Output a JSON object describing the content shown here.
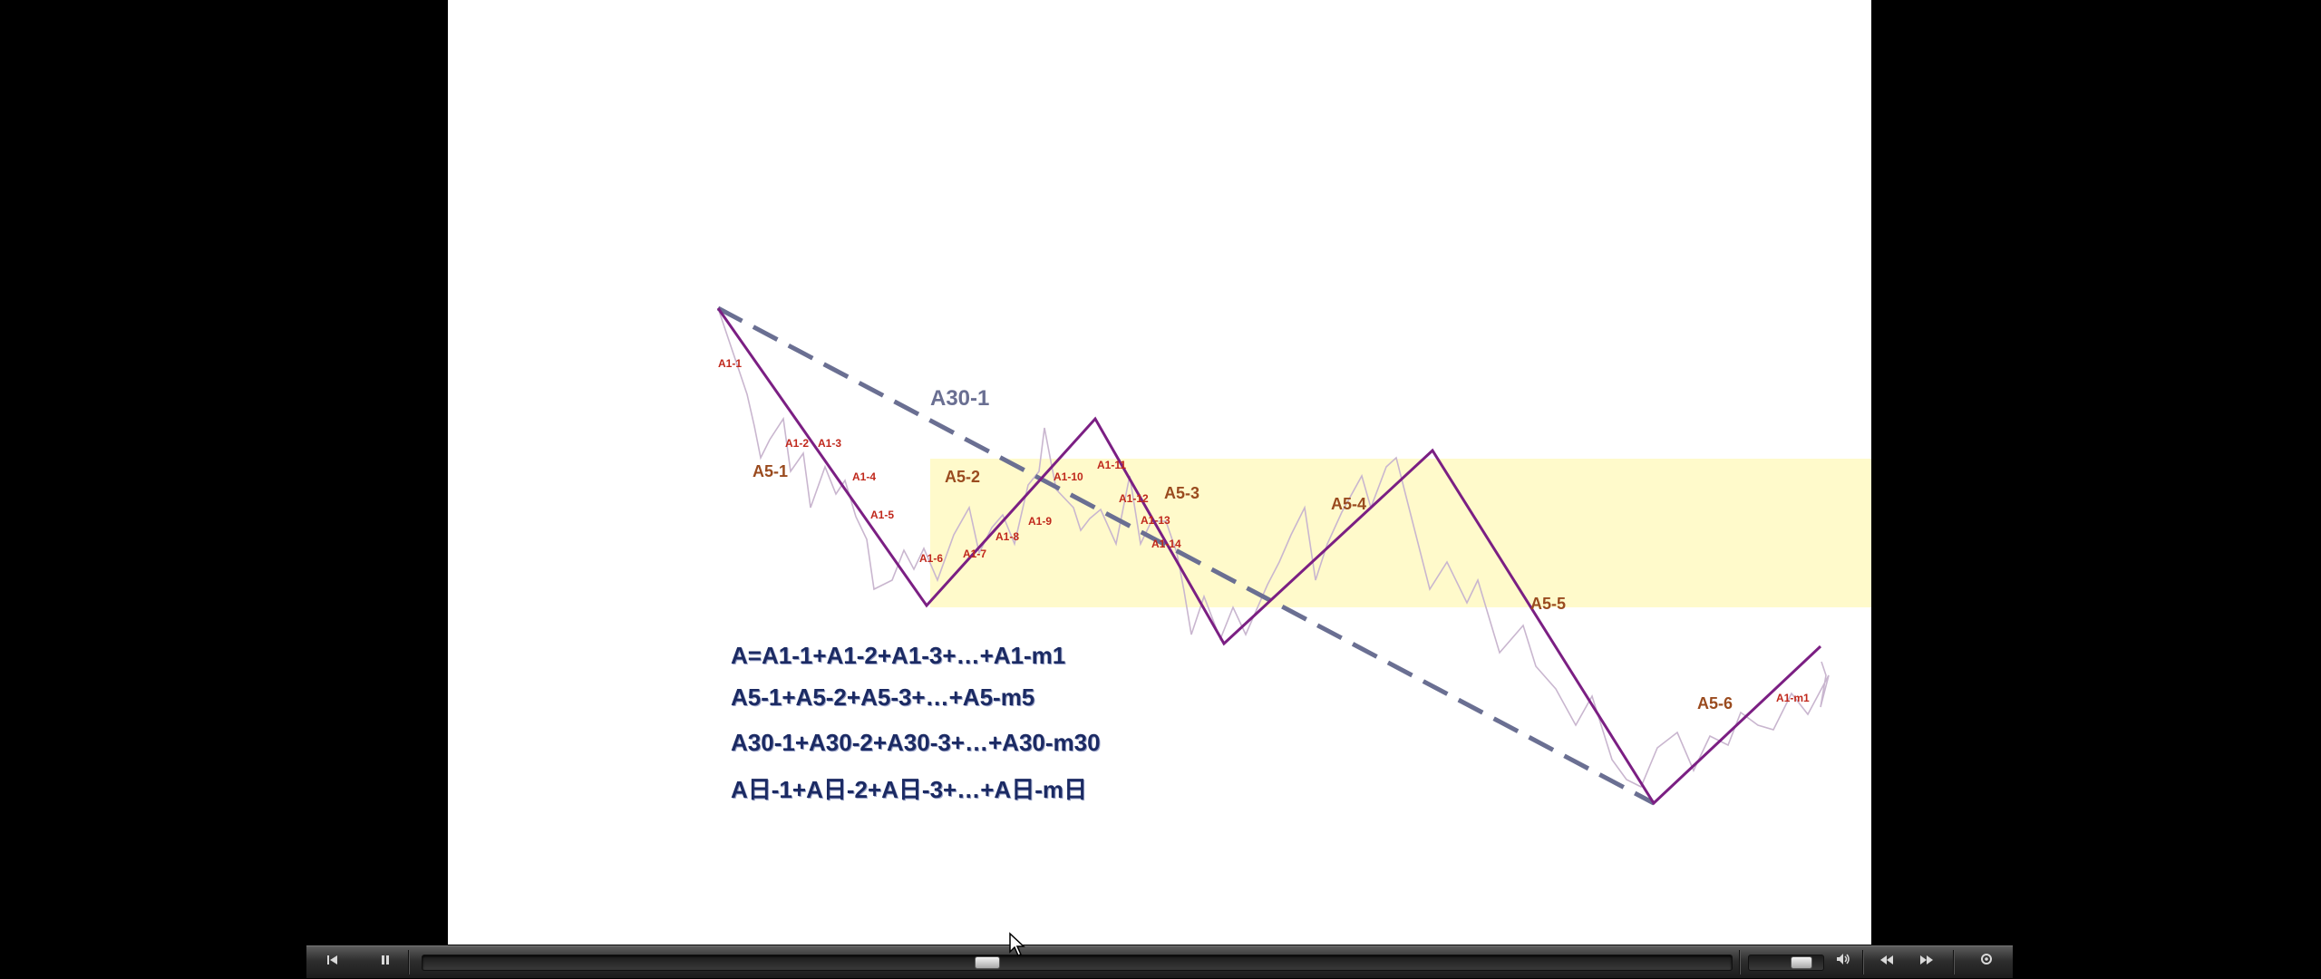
{
  "diagram": {
    "trendline_label": "A30-1",
    "wave_labels_a5": [
      "A5-1",
      "A5-2",
      "A5-3",
      "A5-4",
      "A5-5",
      "A5-6"
    ],
    "wave_labels_a1": [
      "A1-1",
      "A1-2",
      "A1-3",
      "A1-4",
      "A1-5",
      "A1-6",
      "A1-7",
      "A1-8",
      "A1-9",
      "A1-10",
      "A1-11",
      "A1-12",
      "A1-13",
      "A1-14",
      "A1-m1"
    ],
    "formulas": [
      "A=A1-1+A1-2+A1-3+…+A1-m1",
      "A5-1+A5-2+A5-3+…+A5-m5",
      "A30-1+A30-2+A30-3+…+A30-m30",
      "A日-1+A日-2+A日-3+…+A日-m日"
    ],
    "colors": {
      "a5_line": "#7b1f83",
      "a1_line": "#c9b6cf",
      "trendline": "#6a6f92",
      "a5_label": "#9a4b1f",
      "a1_label": "#c0281c",
      "trend_label": "#6a6f92",
      "zone_fill": "#fffac8"
    }
  },
  "player": {
    "buttons": [
      "skip-back-icon",
      "pause-icon",
      "volume-icon",
      "rewind-icon",
      "fast-forward-icon",
      "settings-icon"
    ],
    "seek_progress": 0.43,
    "volume_level": 0.8
  }
}
